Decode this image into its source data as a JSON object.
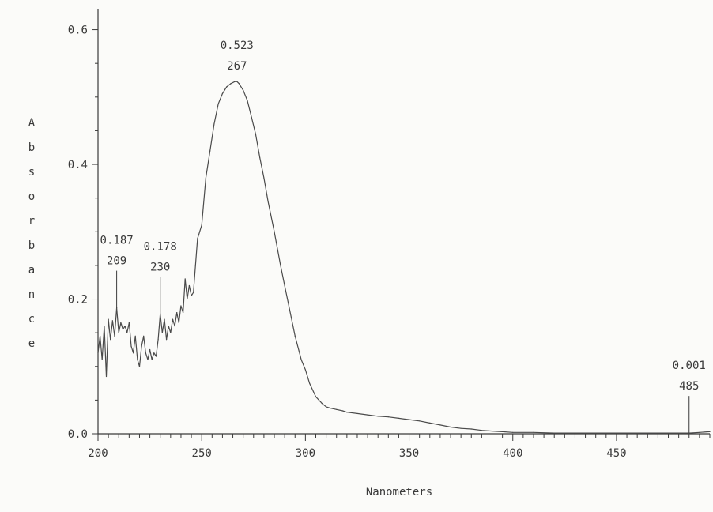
{
  "chart_data": {
    "type": "line",
    "title": "",
    "xlabel": "Nanometers",
    "ylabel": "Absorbance",
    "xlim": [
      200,
      495
    ],
    "ylim": [
      0,
      0.63
    ],
    "x_ticks": [
      200,
      250,
      300,
      350,
      400,
      450
    ],
    "y_ticks": [
      0.0,
      0.2,
      0.4,
      0.6
    ],
    "x_tick_labels": [
      "200",
      "250",
      "300",
      "350",
      "400",
      "450"
    ],
    "y_tick_labels": [
      "0.0",
      "0.2",
      "0.4",
      "0.6"
    ],
    "grid": false,
    "series": [
      {
        "x": [
          200,
          201,
          202,
          203,
          204,
          205,
          206,
          207,
          208,
          209,
          210,
          211,
          212,
          213,
          214,
          215,
          216,
          217,
          218,
          219,
          220,
          221,
          222,
          223,
          224,
          225,
          226,
          227,
          228,
          229,
          230,
          231,
          232,
          233,
          234,
          235,
          236,
          237,
          238,
          239,
          240,
          241,
          242,
          243,
          244,
          245,
          246,
          247,
          248,
          249,
          250,
          252,
          254,
          256,
          258,
          260,
          262,
          264,
          266,
          267,
          268,
          270,
          272,
          274,
          276,
          278,
          280,
          282,
          285,
          288,
          290,
          292,
          295,
          298,
          300,
          302,
          305,
          308,
          310,
          312,
          315,
          318,
          320,
          325,
          330,
          335,
          340,
          345,
          350,
          355,
          360,
          365,
          370,
          375,
          380,
          385,
          390,
          395,
          400,
          410,
          420,
          430,
          440,
          450,
          460,
          470,
          480,
          485,
          490,
          495
        ],
        "y": [
          0.12,
          0.145,
          0.11,
          0.16,
          0.085,
          0.17,
          0.14,
          0.168,
          0.145,
          0.187,
          0.15,
          0.165,
          0.155,
          0.16,
          0.15,
          0.165,
          0.13,
          0.12,
          0.145,
          0.11,
          0.1,
          0.13,
          0.145,
          0.12,
          0.11,
          0.125,
          0.11,
          0.12,
          0.115,
          0.14,
          0.178,
          0.15,
          0.17,
          0.14,
          0.16,
          0.15,
          0.17,
          0.16,
          0.18,
          0.165,
          0.19,
          0.18,
          0.23,
          0.2,
          0.22,
          0.205,
          0.21,
          0.25,
          0.29,
          0.3,
          0.31,
          0.38,
          0.42,
          0.46,
          0.49,
          0.505,
          0.515,
          0.52,
          0.523,
          0.523,
          0.52,
          0.51,
          0.495,
          0.47,
          0.445,
          0.41,
          0.38,
          0.345,
          0.3,
          0.25,
          0.22,
          0.19,
          0.145,
          0.11,
          0.095,
          0.075,
          0.055,
          0.045,
          0.04,
          0.038,
          0.036,
          0.034,
          0.032,
          0.03,
          0.028,
          0.026,
          0.025,
          0.023,
          0.021,
          0.019,
          0.016,
          0.013,
          0.01,
          0.008,
          0.007,
          0.005,
          0.004,
          0.003,
          0.002,
          0.002,
          0.001,
          0.001,
          0.001,
          0.001,
          0.001,
          0.001,
          0.001,
          0.001,
          0.002,
          0.003
        ]
      }
    ],
    "annotations": [
      {
        "value": "0.187",
        "wavelength": "209",
        "x": 209,
        "y": 0.187
      },
      {
        "value": "0.178",
        "wavelength": "230",
        "x": 230,
        "y": 0.178
      },
      {
        "value": "0.523",
        "wavelength": "267",
        "x": 267,
        "y": 0.523
      },
      {
        "value": "0.001",
        "wavelength": "485",
        "x": 485,
        "y": 0.001
      }
    ],
    "colors": {
      "line": "#4a4a4a",
      "axis": "#3a3a3a",
      "background": "#fbfbf9"
    }
  }
}
